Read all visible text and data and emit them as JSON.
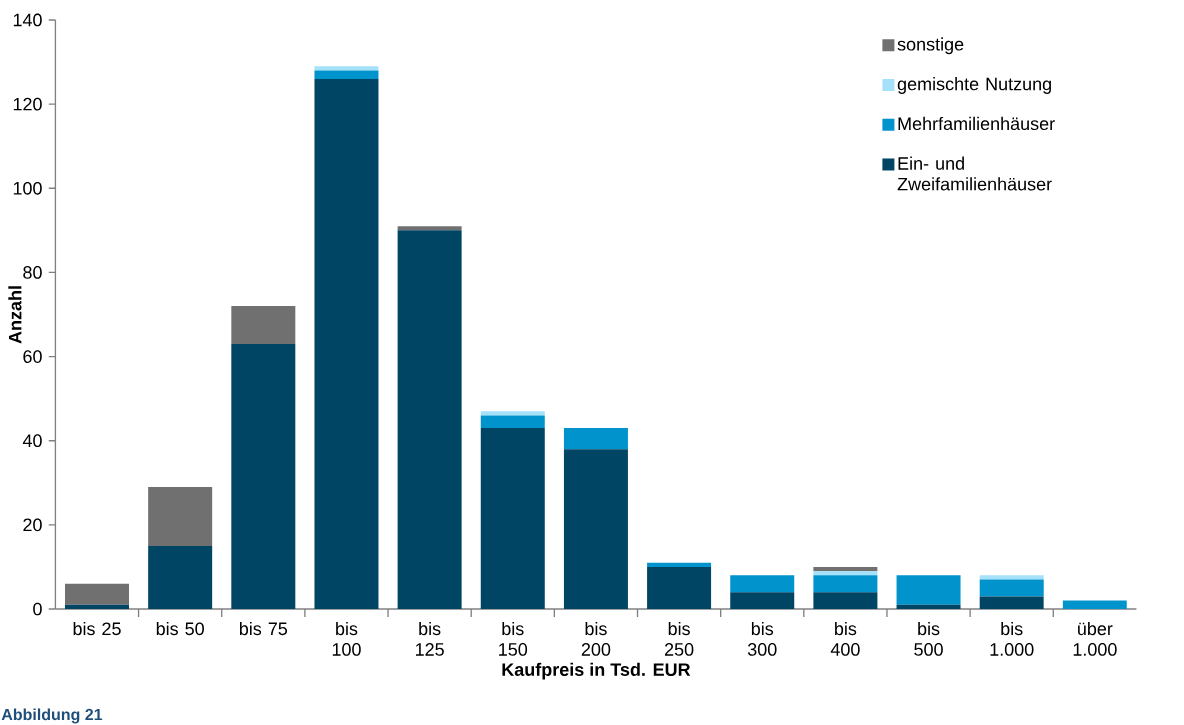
{
  "chart_data": {
    "type": "bar",
    "stacked": true,
    "xlabel": "Kaufpreis in Tsd. EUR",
    "ylabel": "Anzahl",
    "categories": [
      "bis 25",
      "bis 50",
      "bis 75",
      "bis 100",
      "bis 125",
      "bis 150",
      "bis 200",
      "bis 250",
      "bis 300",
      "bis 400",
      "bis 500",
      "bis 1.000",
      "über 1.000"
    ],
    "series": [
      {
        "name": "Ein- und Zweifamilienhäuser",
        "color": "#004563",
        "values": [
          1,
          15,
          63,
          126,
          90,
          43,
          38,
          10,
          4,
          4,
          1,
          3,
          0
        ]
      },
      {
        "name": "Mehrfamilienhäuser",
        "color": "#0093cc",
        "values": [
          0,
          0,
          0,
          2,
          0,
          3,
          5,
          1,
          4,
          4,
          7,
          4,
          2
        ]
      },
      {
        "name": "gemischte Nutzung",
        "color": "#a6e1fa",
        "values": [
          0,
          0,
          0,
          1,
          0,
          1,
          0,
          0,
          0,
          1,
          0,
          1,
          0
        ]
      },
      {
        "name": "sonstige",
        "color": "#707070",
        "values": [
          5,
          14,
          9,
          0,
          1,
          0,
          0,
          0,
          0,
          1,
          0,
          0,
          0
        ]
      }
    ],
    "ylim": [
      0,
      140
    ],
    "yticks": [
      0,
      20,
      40,
      60,
      80,
      100,
      120,
      140
    ],
    "grid": false,
    "legend": "top right",
    "annotations": [
      "Abbildung 21"
    ]
  }
}
